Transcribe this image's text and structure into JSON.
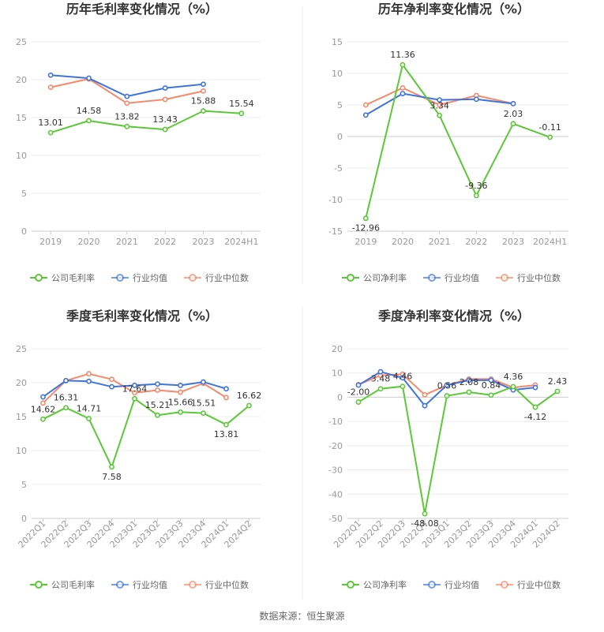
{
  "colors": {
    "company": "#5bc936",
    "avg": "#3f74e0",
    "median": "#f5896b",
    "axis": "#cccccc",
    "grid": "#ececec",
    "divider": "#eeeeee"
  },
  "legend": {
    "gross": "公司毛利率",
    "net": "公司净利率",
    "avg": "行业均值",
    "median": "行业中位数"
  },
  "source": "数据来源：恒生聚源",
  "chart_data": [
    {
      "type": "line",
      "title": "历年毛利率变化情况（%）",
      "categories": [
        "2019",
        "2020",
        "2021",
        "2022",
        "2023",
        "2024H1"
      ],
      "ylim": [
        0,
        25
      ],
      "yticks": [
        0,
        5,
        10,
        15,
        20,
        25
      ],
      "legend_position": "bottom",
      "series": [
        {
          "name": "公司毛利率",
          "key": "company",
          "values": [
            13.01,
            14.58,
            13.82,
            13.43,
            15.88,
            15.54
          ],
          "labels": [
            "13.01",
            "14.58",
            "13.82",
            "13.43",
            "15.88",
            "15.54"
          ]
        },
        {
          "name": "行业均值",
          "key": "avg",
          "values": [
            20.6,
            20.2,
            17.8,
            18.9,
            19.4,
            null
          ]
        },
        {
          "name": "行业中位数",
          "key": "median",
          "values": [
            19.0,
            20.1,
            16.9,
            17.4,
            18.5,
            null
          ]
        }
      ]
    },
    {
      "type": "line",
      "title": "历年净利率变化情况（%）",
      "categories": [
        "2019",
        "2020",
        "2021",
        "2022",
        "2023",
        "2024H1"
      ],
      "ylim": [
        -15,
        15
      ],
      "yticks": [
        -15,
        -10,
        -5,
        0,
        5,
        10,
        15
      ],
      "legend_position": "bottom",
      "series": [
        {
          "name": "公司净利率",
          "key": "company",
          "values": [
            -12.96,
            11.36,
            3.34,
            -9.36,
            2.03,
            -0.11
          ],
          "labels": [
            "-12.96",
            "11.36",
            "3.34",
            "-9.36",
            "2.03",
            "-0.11"
          ]
        },
        {
          "name": "行业均值",
          "key": "avg",
          "values": [
            3.4,
            6.8,
            5.8,
            5.9,
            5.2,
            null
          ]
        },
        {
          "name": "行业中位数",
          "key": "median",
          "values": [
            5.0,
            7.7,
            5.0,
            6.5,
            5.2,
            null
          ]
        }
      ]
    },
    {
      "type": "line",
      "title": "季度毛利率变化情况（%）",
      "categories": [
        "2022Q1",
        "2022Q2",
        "2022Q3",
        "2022Q4",
        "2023Q1",
        "2023Q2",
        "2023Q3",
        "2023Q4",
        "2024Q1",
        "2024Q2"
      ],
      "ylim": [
        0,
        25
      ],
      "yticks": [
        0,
        5,
        10,
        15,
        20,
        25
      ],
      "legend_position": "bottom",
      "series": [
        {
          "name": "公司毛利率",
          "key": "company",
          "values": [
            14.62,
            16.31,
            14.71,
            7.58,
            17.64,
            15.21,
            15.66,
            15.51,
            13.81,
            16.62
          ],
          "labels": [
            "14.62",
            "16.31",
            "14.71",
            "7.58",
            "17.64",
            "15.21",
            "15.66",
            "15.51",
            "13.81",
            "16.62"
          ]
        },
        {
          "name": "行业均值",
          "key": "avg",
          "values": [
            17.9,
            20.3,
            20.2,
            19.4,
            19.6,
            19.8,
            19.6,
            20.1,
            19.1,
            null
          ]
        },
        {
          "name": "行业中位数",
          "key": "median",
          "values": [
            17.0,
            20.3,
            21.3,
            20.5,
            18.5,
            18.9,
            18.6,
            19.9,
            17.8,
            null
          ]
        }
      ]
    },
    {
      "type": "line",
      "title": "季度净利率变化情况（%）",
      "categories": [
        "2022Q1",
        "2022Q2",
        "2022Q3",
        "2022Q4",
        "2023Q1",
        "2023Q2",
        "2023Q3",
        "2023Q4",
        "2024Q1",
        "2024Q2"
      ],
      "ylim": [
        -50,
        20
      ],
      "yticks": [
        -50,
        -40,
        -30,
        -20,
        -10,
        0,
        10,
        20
      ],
      "legend_position": "bottom",
      "series": [
        {
          "name": "公司净利率",
          "key": "company",
          "values": [
            -2.0,
            3.48,
            4.46,
            -48.08,
            0.56,
            2.08,
            0.84,
            4.36,
            -4.12,
            2.43
          ],
          "labels": [
            "-2.00",
            "3.48",
            "4.46",
            "-48.08",
            "0.56",
            "2.08",
            "0.84",
            "4.36",
            "-4.12",
            "2.43"
          ]
        },
        {
          "name": "行业均值",
          "key": "avg",
          "values": [
            5.0,
            10.5,
            8.0,
            -3.5,
            5.0,
            7.0,
            7.0,
            3.0,
            4.0,
            null
          ]
        },
        {
          "name": "行业中位数",
          "key": "median",
          "values": [
            5.2,
            9.0,
            9.5,
            1.0,
            5.0,
            7.5,
            7.5,
            4.0,
            5.0,
            null
          ]
        }
      ]
    }
  ]
}
